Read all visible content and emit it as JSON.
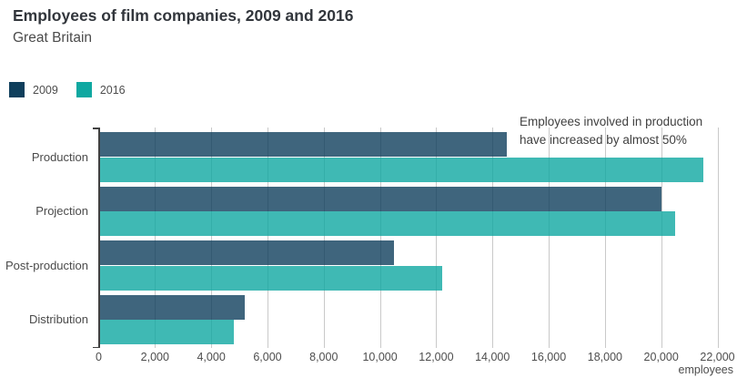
{
  "header": {
    "title": "Employees of film companies, 2009 and 2016",
    "subtitle": "Great Britain"
  },
  "chart_data": {
    "type": "bar",
    "orientation": "horizontal",
    "title": "Employees of film companies, 2009 and 2016",
    "subtitle": "Great Britain",
    "categories": [
      "Production",
      "Projection",
      "Post-production",
      "Distribution"
    ],
    "series": [
      {
        "name": "2009",
        "color": "#0f3f5c",
        "values": [
          14500,
          20000,
          10500,
          5200
        ]
      },
      {
        "name": "2016",
        "color": "#0fa8a1",
        "values": [
          21500,
          20500,
          12200,
          4800
        ]
      }
    ],
    "bar_opacity": 0.8,
    "xlabel": "employees",
    "xlim": [
      0,
      22000
    ],
    "xticks": [
      0,
      2000,
      4000,
      6000,
      8000,
      10000,
      12000,
      14000,
      16000,
      18000,
      20000,
      22000
    ],
    "xtick_labels": [
      "0",
      "2,000",
      "4,000",
      "6,000",
      "8,000",
      "10,000",
      "12,000",
      "14,000",
      "16,000",
      "18,000",
      "20,000",
      "22,000"
    ],
    "grid": true,
    "legend_position": "top-left",
    "annotation": {
      "line1": "Employees involved in production",
      "line2": "have increased by almost 50%"
    }
  },
  "colors": {
    "gridline": "#c9c9c9",
    "axis": "#404040",
    "title_text": "#32363c",
    "body_text": "#4a4a4a"
  }
}
